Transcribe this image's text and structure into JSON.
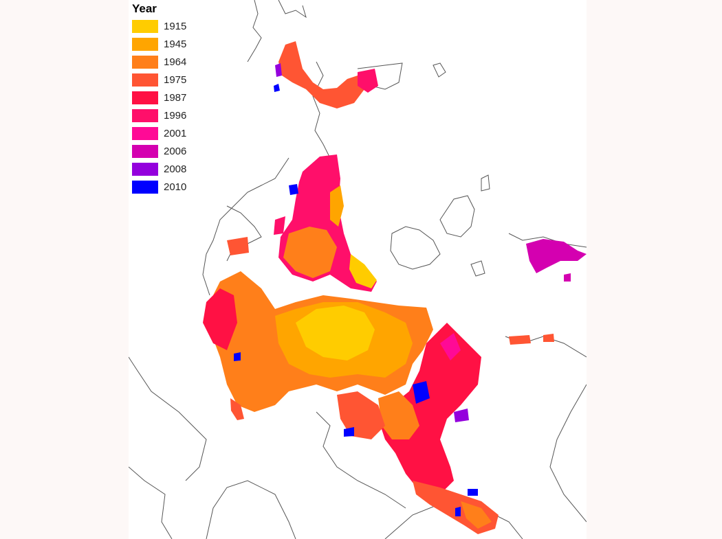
{
  "map": {
    "legend": {
      "title": "Year",
      "items": [
        {
          "label": "1915",
          "color": "#FFCC00"
        },
        {
          "label": "1945",
          "color": "#FFA500"
        },
        {
          "label": "1964",
          "color": "#FF7F1A"
        },
        {
          "label": "1975",
          "color": "#FF5533"
        },
        {
          "label": "1987",
          "color": "#FF1144"
        },
        {
          "label": "1996",
          "color": "#FF0F6A"
        },
        {
          "label": "2001",
          "color": "#FF0A96"
        },
        {
          "label": "2006",
          "color": "#D400B0"
        },
        {
          "label": "2008",
          "color": "#9400DD"
        },
        {
          "label": "2010",
          "color": "#0000FF"
        }
      ]
    },
    "coastline_color": "#555555",
    "background_color": "#ffffff"
  }
}
